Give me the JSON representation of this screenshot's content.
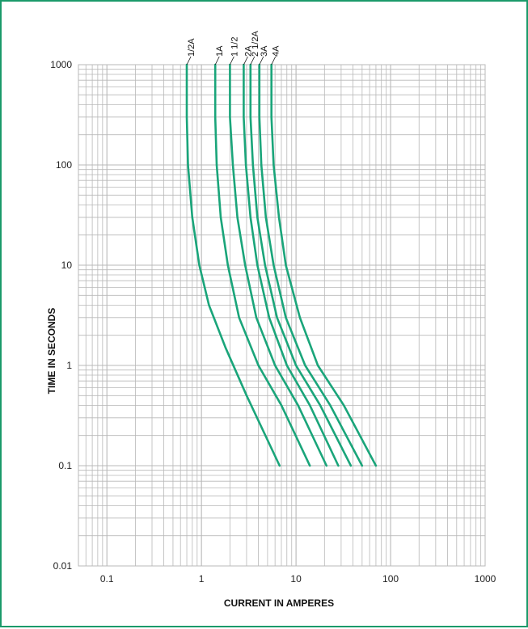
{
  "chart_data": {
    "type": "line",
    "title": "",
    "xlabel": "CURRENT IN AMPERES",
    "ylabel": "TIME IN SECONDS",
    "x_scale": "log",
    "y_scale": "log",
    "xlim": [
      0.05,
      1000
    ],
    "ylim": [
      0.01,
      1000
    ],
    "x_ticks": [
      {
        "value": 0.1,
        "label": "0.1"
      },
      {
        "value": 1,
        "label": "1"
      },
      {
        "value": 10,
        "label": "10"
      },
      {
        "value": 100,
        "label": "100"
      },
      {
        "value": 1000,
        "label": "1000"
      }
    ],
    "y_ticks": [
      {
        "value": 1000,
        "label": "1000"
      },
      {
        "value": 100,
        "label": "100"
      },
      {
        "value": 10,
        "label": "10"
      },
      {
        "value": 1,
        "label": "1"
      },
      {
        "value": 0.1,
        "label": "0.1"
      },
      {
        "value": 0.01,
        "label": "0.01"
      }
    ],
    "grid": true,
    "line_color": "#1aa57a",
    "grid_color": "#b8b8b8",
    "series": [
      {
        "name": "1/2A",
        "points": [
          [
            0.7,
            1000
          ],
          [
            0.7,
            300
          ],
          [
            0.72,
            100
          ],
          [
            0.8,
            30
          ],
          [
            0.95,
            10
          ],
          [
            1.2,
            4
          ],
          [
            1.8,
            1.5
          ],
          [
            3,
            0.5
          ],
          [
            6.7,
            0.1
          ]
        ]
      },
      {
        "name": "1A",
        "points": [
          [
            1.4,
            1000
          ],
          [
            1.4,
            300
          ],
          [
            1.45,
            100
          ],
          [
            1.6,
            30
          ],
          [
            1.9,
            10
          ],
          [
            2.5,
            3
          ],
          [
            4,
            1
          ],
          [
            7,
            0.4
          ],
          [
            14,
            0.1
          ]
        ]
      },
      {
        "name": "1 1/2",
        "points": [
          [
            2,
            1000
          ],
          [
            2,
            300
          ],
          [
            2.15,
            100
          ],
          [
            2.4,
            30
          ],
          [
            2.9,
            10
          ],
          [
            3.8,
            3
          ],
          [
            6,
            1
          ],
          [
            10.5,
            0.4
          ],
          [
            21,
            0.1
          ]
        ]
      },
      {
        "name": "2A",
        "points": [
          [
            2.8,
            1000
          ],
          [
            2.8,
            300
          ],
          [
            2.95,
            100
          ],
          [
            3.3,
            30
          ],
          [
            3.9,
            10
          ],
          [
            5.2,
            3
          ],
          [
            8,
            1
          ],
          [
            14,
            0.4
          ],
          [
            28,
            0.1
          ]
        ]
      },
      {
        "name": "2 1/2A",
        "points": [
          [
            3.3,
            1000
          ],
          [
            3.3,
            300
          ],
          [
            3.5,
            100
          ],
          [
            3.9,
            30
          ],
          [
            4.7,
            10
          ],
          [
            6.3,
            3
          ],
          [
            10,
            1
          ],
          [
            18,
            0.4
          ],
          [
            38,
            0.1
          ]
        ]
      },
      {
        "name": "3A",
        "points": [
          [
            4.1,
            1000
          ],
          [
            4.1,
            300
          ],
          [
            4.3,
            100
          ],
          [
            4.8,
            30
          ],
          [
            5.8,
            10
          ],
          [
            7.8,
            3
          ],
          [
            12.5,
            1
          ],
          [
            23,
            0.4
          ],
          [
            50,
            0.1
          ]
        ]
      },
      {
        "name": "4A",
        "points": [
          [
            5.5,
            1000
          ],
          [
            5.5,
            300
          ],
          [
            5.8,
            100
          ],
          [
            6.6,
            30
          ],
          [
            7.8,
            10
          ],
          [
            11,
            3
          ],
          [
            17,
            1
          ],
          [
            32,
            0.4
          ],
          [
            70,
            0.1
          ]
        ]
      }
    ]
  }
}
